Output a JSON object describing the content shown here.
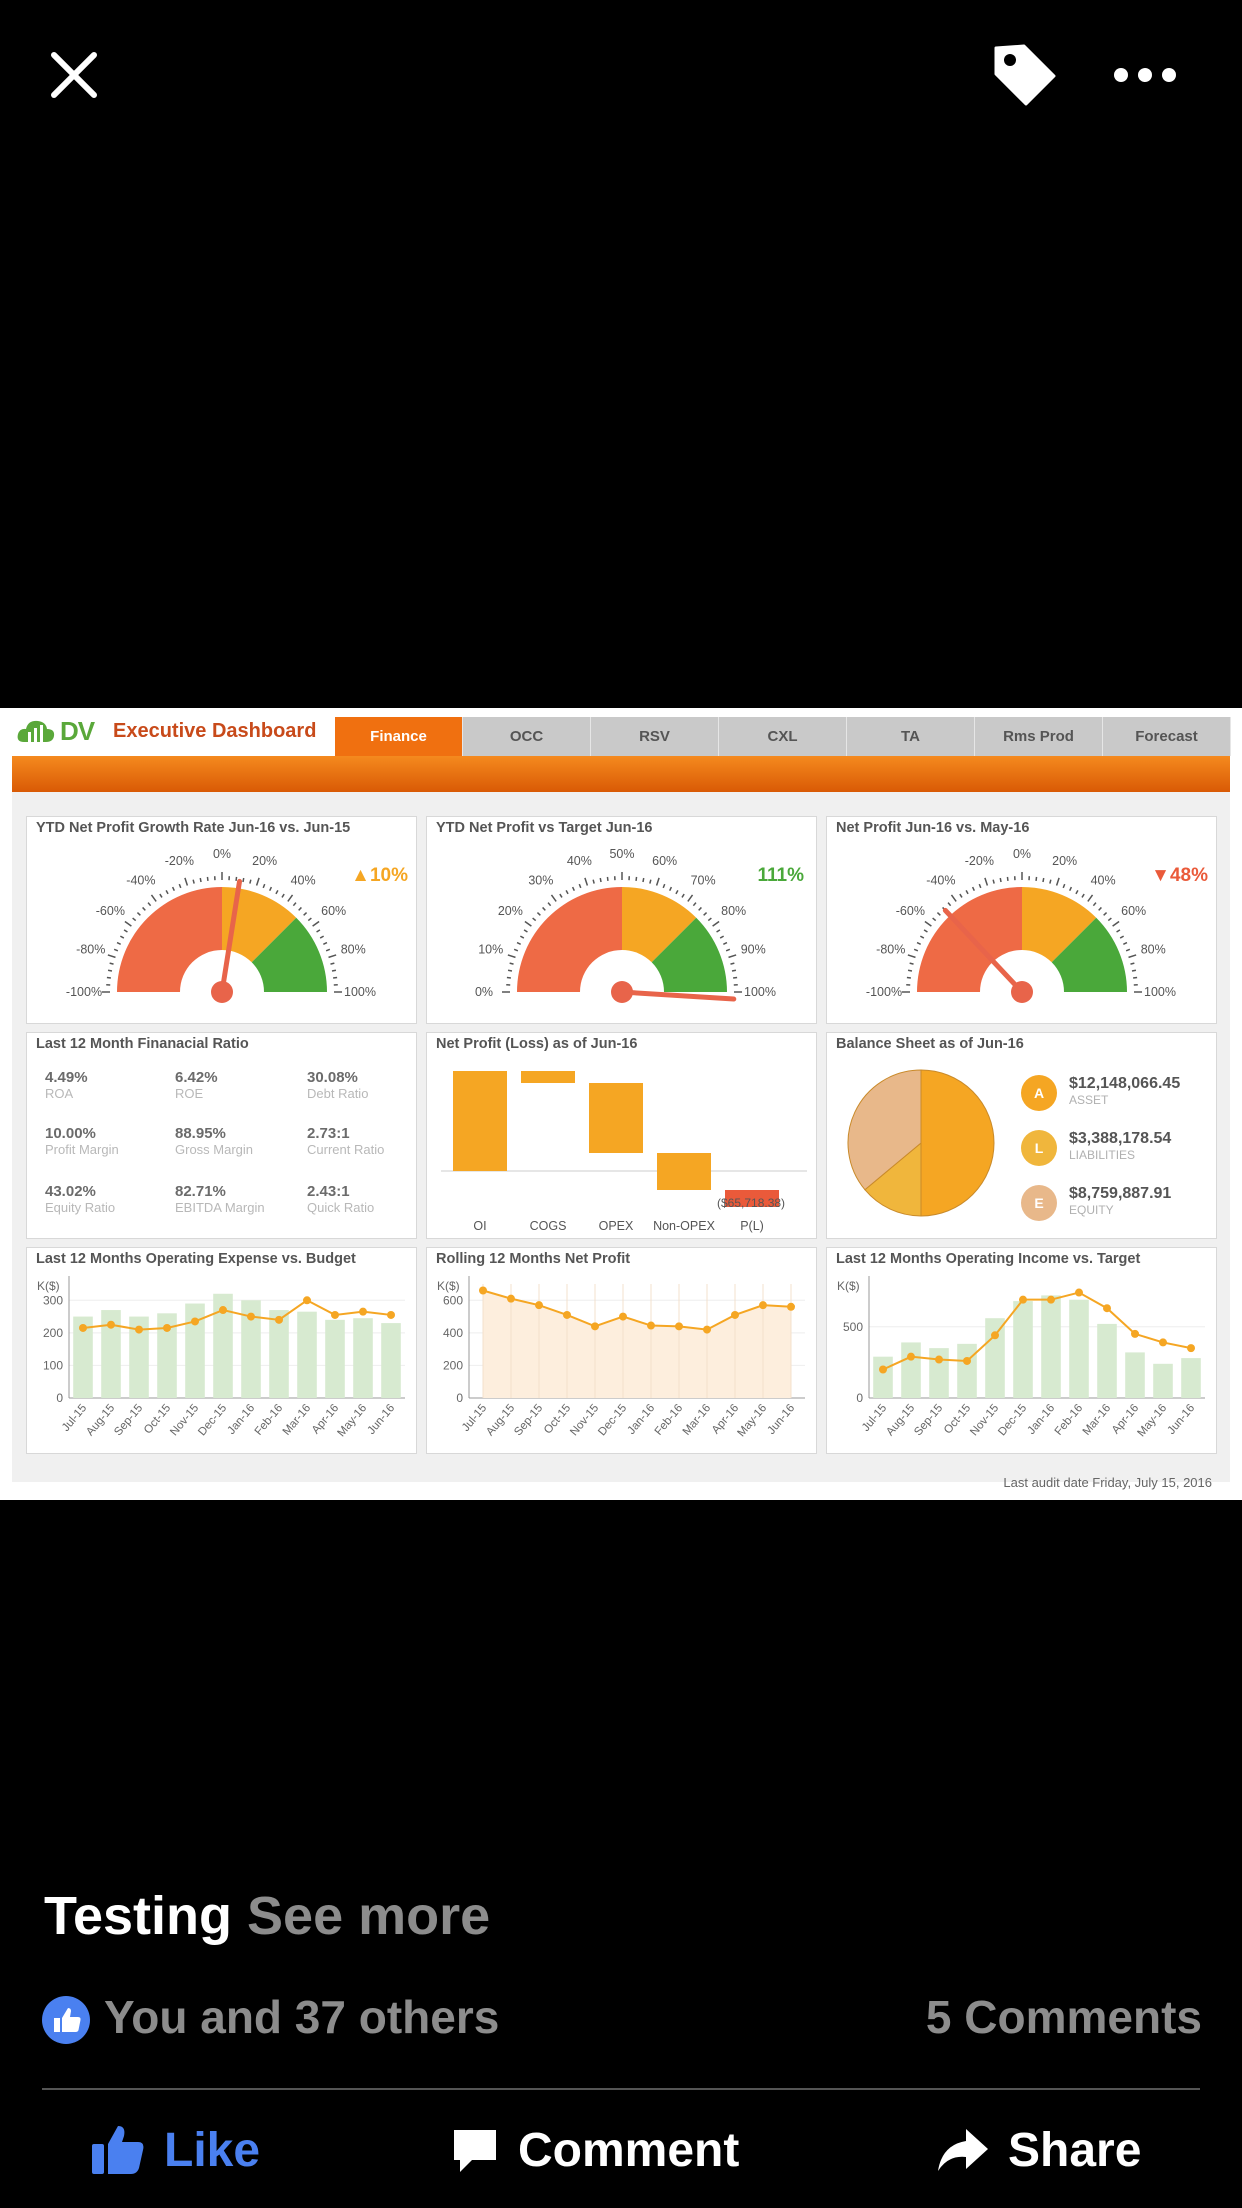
{
  "photo": {
    "header": {
      "logo_text": "DV",
      "title": "Executive Dashboard",
      "tabs": [
        "Finance",
        "OCC",
        "RSV",
        "CXL",
        "TA",
        "Rms Prod",
        "Forecast"
      ],
      "active_tab": "Finance"
    },
    "gauges": [
      {
        "title": "YTD Net Profit Growth Rate Jun-16 vs. Jun-15",
        "indicator": "▲10%",
        "indicator_color": "#f5a623",
        "ticks": [
          "-100%",
          "-80%",
          "-60%",
          "-40%",
          "-20%",
          "0%",
          "20%",
          "40%",
          "60%",
          "80%",
          "100%"
        ],
        "needle_value": 10,
        "min": -100,
        "max": 100
      },
      {
        "title": "YTD Net Profit vs Target Jun-16",
        "indicator": "111%",
        "indicator_color": "#4aa83a",
        "ticks": [
          "0%",
          "10%",
          "20%",
          "30%",
          "40%",
          "50%",
          "60%",
          "70%",
          "80%",
          "90%",
          "100%"
        ],
        "needle_value": 111,
        "min": 0,
        "max": 100
      },
      {
        "title": "Net Profit Jun-16 vs. May-16",
        "indicator": "▼48%",
        "indicator_color": "#ea5a3a",
        "ticks": [
          "-100%",
          "-80%",
          "-60%",
          "-40%",
          "-20%",
          "0%",
          "20%",
          "40%",
          "60%",
          "80%",
          "100%"
        ],
        "needle_value": -48,
        "min": -100,
        "max": 100
      }
    ],
    "ratios": {
      "title": "Last 12 Month Finanacial Ratio",
      "items": [
        {
          "value": "4.49%",
          "label": "ROA"
        },
        {
          "value": "6.42%",
          "label": "ROE"
        },
        {
          "value": "30.08%",
          "label": "Debt Ratio"
        },
        {
          "value": "10.00%",
          "label": "Profit Margin"
        },
        {
          "value": "88.95%",
          "label": "Gross Margin"
        },
        {
          "value": "2.73:1",
          "label": "Current Ratio"
        },
        {
          "value": "43.02%",
          "label": "Equity Ratio"
        },
        {
          "value": "82.71%",
          "label": "EBITDA Margin"
        },
        {
          "value": "2.43:1",
          "label": "Quick Ratio"
        }
      ]
    },
    "waterfall": {
      "title": "Net Profit (Loss) as of Jun-16",
      "annotation": "($65,718.38)",
      "categories": [
        "OI",
        "COGS",
        "OPEX",
        "Non-OPEX",
        "P(L)"
      ],
      "bars": [
        {
          "start": 0,
          "end": 100,
          "color": "#f5a623"
        },
        {
          "start": 100,
          "end": 88,
          "color": "#f5a623"
        },
        {
          "start": 88,
          "end": 18,
          "color": "#f5a623"
        },
        {
          "start": 18,
          "end": -19,
          "color": "#f5a623"
        },
        {
          "start": -19,
          "end": -36,
          "color": "#ea5a3a"
        }
      ]
    },
    "balance": {
      "title": "Balance Sheet as of Jun-16",
      "items": [
        {
          "letter": "A",
          "value": "$12,148,066.45",
          "label": "ASSET",
          "color": "#f5a623"
        },
        {
          "letter": "L",
          "value": "$3,388,178.54",
          "label": "LIABILITIES",
          "color": "#f0b63c"
        },
        {
          "letter": "E",
          "value": "$8,759,887.91",
          "label": "EQUITY",
          "color": "#e8b88a"
        }
      ]
    },
    "footer": "Last audit date Friday, July 15, 2016"
  },
  "chart_data": [
    {
      "type": "bar",
      "title": "Last 12 Months Operating Expense vs. Budget",
      "ylabel": "K($)",
      "ylim": [
        0,
        350
      ],
      "yticks": [
        "0",
        "100",
        "200",
        "300"
      ],
      "categories": [
        "Jul-15",
        "Aug-15",
        "Sep-15",
        "Oct-15",
        "Nov-15",
        "Dec-15",
        "Jan-16",
        "Feb-16",
        "Mar-16",
        "Apr-16",
        "May-16",
        "Jun-16"
      ],
      "series": [
        {
          "type": "bar",
          "values": [
            250,
            270,
            250,
            260,
            290,
            320,
            300,
            270,
            265,
            240,
            245,
            230
          ],
          "color": "#d7ead0"
        },
        {
          "type": "line",
          "values": [
            215,
            225,
            210,
            215,
            235,
            270,
            250,
            240,
            300,
            255,
            265,
            255
          ],
          "color": "#f5a623"
        }
      ]
    },
    {
      "type": "area",
      "title": "Rolling 12 Months Net Profit",
      "ylabel": "K($)",
      "ylim": [
        0,
        700
      ],
      "yticks": [
        "0",
        "200",
        "400",
        "600"
      ],
      "categories": [
        "Jul-15",
        "Aug-15",
        "Sep-15",
        "Oct-15",
        "Nov-15",
        "Dec-15",
        "Jan-16",
        "Feb-16",
        "Mar-16",
        "Apr-16",
        "May-16",
        "Jun-16"
      ],
      "series": [
        {
          "type": "line",
          "values": [
            660,
            610,
            570,
            510,
            440,
            500,
            445,
            440,
            420,
            510,
            570,
            560
          ],
          "color": "#f5a623"
        }
      ]
    },
    {
      "type": "bar",
      "title": "Last 12 Months Operating Income vs. Target",
      "ylabel": "K($)",
      "ylim": [
        0,
        800
      ],
      "yticks": [
        "0",
        "500"
      ],
      "categories": [
        "Jul-15",
        "Aug-15",
        "Sep-15",
        "Oct-15",
        "Nov-15",
        "Dec-15",
        "Jan-16",
        "Feb-16",
        "Mar-16",
        "Apr-16",
        "May-16",
        "Jun-16"
      ],
      "series": [
        {
          "type": "bar",
          "values": [
            290,
            390,
            350,
            380,
            560,
            680,
            720,
            690,
            520,
            320,
            240,
            280
          ],
          "color": "#d7ead0"
        },
        {
          "type": "line",
          "values": [
            200,
            290,
            270,
            260,
            440,
            690,
            690,
            740,
            630,
            450,
            390,
            350
          ],
          "color": "#f5a623"
        }
      ]
    }
  ],
  "top_bar": {
    "close_icon": "close-icon",
    "tag_icon": "tag-icon",
    "more_icon": "more-icon"
  },
  "post": {
    "caption": "Testing",
    "see_more": "See more",
    "likes_text": "You and 37 others",
    "comments_text": "5 Comments",
    "actions": {
      "like": "Like",
      "comment": "Comment",
      "share": "Share"
    },
    "like_color": "#4a80f0"
  }
}
